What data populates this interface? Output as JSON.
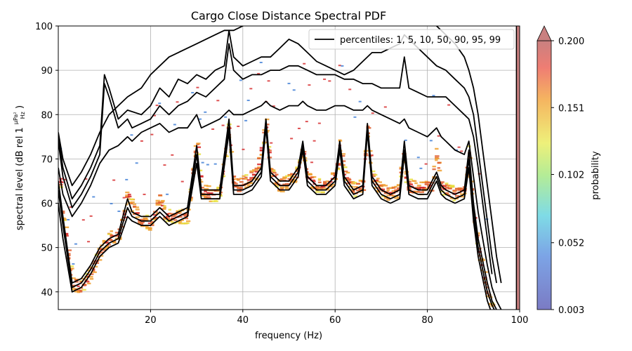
{
  "chart_data": {
    "type": "heatmap",
    "title": "Cargo Close Distance Spectral PDF",
    "xlabel": "frequency (Hz)",
    "ylabel": "spectral level (dB rel 1",
    "ylabel_unit": {
      "numerator": "μPa²",
      "denominator": "Hz"
    },
    "ylabel_close": ")",
    "xlim": [
      0,
      100
    ],
    "ylim": [
      36,
      100
    ],
    "xticks": [
      20,
      40,
      60,
      80,
      100
    ],
    "yticks": [
      40,
      50,
      60,
      70,
      80,
      90,
      100
    ],
    "grid": true,
    "legend": {
      "label": "percentiles: 1, 5, 10, 50, 90, 95, 99",
      "position": "top-right"
    },
    "colorbar": {
      "label": "probability",
      "ticks": [
        "0.003",
        "0.052",
        "0.102",
        "0.151",
        "0.200"
      ],
      "range": [
        0.003,
        0.2
      ],
      "extend": "max"
    },
    "pdf_ridge": {
      "x": [
        0,
        1,
        3,
        5,
        7,
        9,
        11,
        13,
        14.5,
        15,
        16,
        18,
        20,
        21,
        22,
        23,
        24,
        26,
        28,
        29.5,
        30,
        31,
        33,
        35,
        37,
        38,
        39,
        41,
        43,
        44.5,
        45,
        46,
        48,
        50,
        52,
        53,
        54,
        56,
        58,
        60,
        61,
        62,
        64,
        66,
        67,
        68,
        70,
        72,
        74,
        74.5,
        75,
        76,
        78,
        80,
        81,
        82,
        83,
        84,
        86,
        88,
        89,
        90,
        91,
        92,
        93,
        94
      ],
      "y": [
        72,
        58,
        42,
        41,
        44,
        49,
        52,
        53,
        58,
        63,
        59,
        56,
        55.5,
        58,
        61,
        58,
        57,
        57,
        57,
        70,
        75,
        63,
        62,
        62,
        78,
        64,
        64,
        65,
        67,
        75,
        78,
        67,
        64,
        65,
        67,
        73,
        66,
        64,
        64,
        66,
        73,
        67,
        63,
        64,
        77,
        66,
        63,
        62,
        63,
        74,
        67,
        64,
        63,
        64,
        64,
        72,
        64,
        63,
        62,
        63,
        72,
        58,
        50,
        45,
        40,
        36
      ]
    },
    "percentiles": [
      {
        "name": "1",
        "x": [
          0,
          1,
          3,
          5,
          7,
          9,
          11,
          13,
          15,
          16,
          18,
          20,
          22,
          24,
          26,
          28,
          30,
          31,
          33,
          35,
          37,
          38,
          40,
          42,
          44,
          45,
          46,
          48,
          50,
          52,
          53,
          54,
          56,
          58,
          60,
          61,
          62,
          64,
          66,
          67,
          68,
          70,
          72,
          74,
          75,
          76,
          78,
          80,
          82,
          83,
          84,
          86,
          88,
          89,
          90,
          91,
          92,
          93,
          94,
          95
        ],
        "y": [
          60,
          52,
          40,
          41,
          44,
          48,
          50,
          51,
          57,
          56,
          55,
          55,
          57,
          55,
          56,
          57,
          69,
          61,
          61,
          61,
          76,
          62,
          62,
          63,
          66,
          77,
          65,
          63,
          63,
          66,
          72,
          64,
          62,
          62,
          64,
          72,
          64,
          61,
          62,
          76,
          64,
          61,
          60,
          61,
          71,
          62,
          61,
          61,
          65,
          62,
          61,
          60,
          61,
          68,
          56,
          48,
          43,
          38,
          35,
          34
        ]
      },
      {
        "name": "5",
        "x": [
          0,
          1,
          3,
          5,
          7,
          9,
          11,
          13,
          15,
          16,
          18,
          20,
          22,
          24,
          26,
          28,
          30,
          31,
          33,
          35,
          37,
          38,
          40,
          42,
          44,
          45,
          46,
          48,
          50,
          52,
          53,
          54,
          56,
          58,
          60,
          61,
          62,
          64,
          66,
          67,
          68,
          70,
          72,
          74,
          75,
          76,
          78,
          80,
          82,
          83,
          84,
          86,
          88,
          89,
          90,
          91,
          92,
          93,
          94,
          95
        ],
        "y": [
          63,
          55,
          41,
          42,
          45,
          49,
          51,
          52,
          59,
          57,
          56,
          56,
          58,
          56,
          57,
          58,
          71,
          62,
          62,
          62,
          77,
          63,
          63,
          64,
          67,
          78,
          66,
          64,
          64,
          67,
          73,
          65,
          63,
          63,
          65,
          73,
          65,
          62,
          63,
          77,
          65,
          62,
          61,
          62,
          72,
          63,
          62,
          62,
          66,
          63,
          62,
          61,
          62,
          70,
          58,
          50,
          45,
          40,
          37,
          35
        ]
      },
      {
        "name": "10",
        "x": [
          0,
          1,
          3,
          5,
          7,
          9,
          11,
          13,
          15,
          16,
          18,
          20,
          22,
          24,
          26,
          28,
          30,
          31,
          33,
          35,
          37,
          38,
          40,
          42,
          44,
          45,
          46,
          48,
          50,
          52,
          53,
          54,
          56,
          58,
          60,
          61,
          62,
          64,
          66,
          67,
          68,
          70,
          72,
          74,
          75,
          76,
          78,
          80,
          82,
          83,
          84,
          86,
          88,
          89,
          90,
          91,
          92,
          93,
          94,
          95
        ],
        "y": [
          65,
          57,
          42,
          43,
          46,
          50,
          52,
          53,
          61,
          58,
          57,
          57,
          59,
          57,
          58,
          59,
          73,
          63,
          63,
          63,
          79,
          64,
          64,
          65,
          68,
          79,
          67,
          65,
          65,
          68,
          74,
          66,
          64,
          64,
          66,
          74,
          66,
          63,
          64,
          78,
          66,
          63,
          62,
          63,
          74,
          64,
          63,
          63,
          67,
          64,
          63,
          62,
          63,
          72,
          60,
          52,
          47,
          42,
          38,
          36
        ]
      },
      {
        "name": "50",
        "x": [
          0,
          1,
          3,
          5,
          7,
          9,
          11,
          13,
          15,
          16,
          18,
          20,
          22,
          24,
          26,
          28,
          30,
          31,
          33,
          35,
          37,
          38,
          40,
          42,
          44,
          45,
          46,
          48,
          50,
          52,
          53,
          54,
          56,
          58,
          60,
          61,
          62,
          64,
          66,
          67,
          68,
          70,
          72,
          74,
          75,
          76,
          78,
          80,
          82,
          83,
          84,
          86,
          88,
          89,
          90,
          91,
          92,
          93,
          94,
          95,
          96
        ],
        "y": [
          68,
          62,
          57,
          60,
          64,
          69,
          72,
          73,
          75,
          74,
          76,
          77,
          78,
          76,
          77,
          77,
          80,
          77,
          78,
          79,
          81,
          80,
          80,
          81,
          82,
          83,
          82,
          81,
          82,
          82,
          83,
          82,
          81,
          81,
          82,
          82,
          82,
          81,
          81,
          82,
          81,
          80,
          79,
          78,
          79,
          77,
          76,
          75,
          77,
          75,
          74,
          72,
          71,
          74,
          66,
          58,
          52,
          46,
          41,
          38,
          36
        ]
      },
      {
        "name": "90",
        "x": [
          0,
          1,
          3,
          5,
          7,
          9,
          10,
          11,
          13,
          15,
          16,
          18,
          20,
          22,
          24,
          26,
          28,
          29,
          30,
          32,
          34,
          36,
          37,
          38,
          40,
          42,
          44,
          46,
          48,
          50,
          52,
          54,
          56,
          58,
          60,
          62,
          64,
          66,
          68,
          70,
          72,
          74,
          75,
          76,
          78,
          80,
          82,
          84,
          86,
          88,
          89,
          90,
          91,
          92,
          93,
          94
        ],
        "y": [
          74,
          66,
          59,
          62,
          66,
          71,
          87,
          84,
          77,
          79,
          77,
          78,
          79,
          82,
          80,
          82,
          83,
          84,
          85,
          84,
          86,
          88,
          96,
          90,
          88,
          89,
          89,
          90,
          90,
          91,
          91,
          90,
          89,
          89,
          89,
          88,
          88,
          87,
          87,
          86,
          86,
          86,
          93,
          86,
          85,
          84,
          84,
          84,
          82,
          80,
          79,
          75,
          68,
          60,
          52,
          44
        ]
      },
      {
        "name": "95",
        "x": [
          0,
          1,
          3,
          5,
          7,
          9,
          10,
          11,
          13,
          15,
          18,
          20,
          22,
          24,
          26,
          28,
          30,
          32,
          34,
          36,
          37,
          38,
          40,
          42,
          44,
          46,
          48,
          50,
          52,
          54,
          56,
          58,
          60,
          62,
          64,
          66,
          68,
          70,
          72,
          74,
          75,
          76,
          78,
          80,
          82,
          84,
          86,
          88,
          89,
          90,
          91,
          92,
          93,
          94,
          95
        ],
        "y": [
          75,
          68,
          61,
          64,
          68,
          73,
          89,
          86,
          79,
          81,
          80,
          82,
          86,
          84,
          88,
          87,
          89,
          88,
          90,
          91,
          99,
          93,
          91,
          92,
          93,
          93,
          95,
          97,
          96,
          94,
          92,
          91,
          90,
          89,
          90,
          92,
          94,
          94,
          95,
          96,
          98,
          97,
          95,
          93,
          91,
          90,
          88,
          86,
          84,
          80,
          72,
          64,
          56,
          48,
          42
        ]
      },
      {
        "name": "99",
        "x": [
          0,
          1,
          3,
          5,
          7,
          9,
          11,
          13,
          15,
          18,
          20,
          22,
          24,
          26,
          28,
          30,
          32,
          34,
          36,
          38,
          40,
          42,
          44,
          46,
          48,
          50,
          52,
          54,
          56,
          58,
          60,
          62,
          64,
          66,
          68,
          70,
          72,
          74,
          76,
          78,
          80,
          82,
          84,
          86,
          88,
          89,
          90,
          91,
          92,
          93,
          94,
          95,
          96
        ],
        "y": [
          76,
          70,
          64,
          67,
          71,
          76,
          80,
          82,
          84,
          86,
          89,
          91,
          93,
          94,
          95,
          96,
          97,
          98,
          99,
          99,
          100,
          101,
          102,
          103,
          104,
          104,
          103,
          102,
          101,
          102,
          103,
          103,
          104,
          104,
          104,
          104,
          104,
          104,
          103,
          102,
          101,
          100,
          98,
          96,
          93,
          90,
          86,
          80,
          72,
          64,
          56,
          48,
          42
        ]
      }
    ]
  }
}
